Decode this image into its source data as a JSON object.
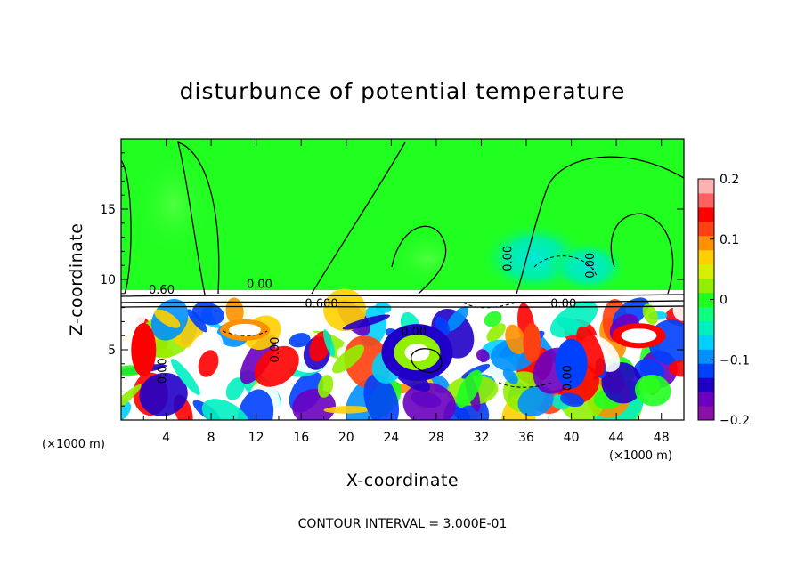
{
  "chart_data": {
    "type": "heatmap",
    "title": "disturbunce of potential temperature",
    "xlabel": "X-coordinate",
    "ylabel": "Z-coordinate",
    "x_unit": "(×1000 m)",
    "y_unit": "(×1000 m)",
    "xlim": [
      0,
      50
    ],
    "ylim": [
      0,
      20
    ],
    "x_ticks": [
      4,
      8,
      12,
      16,
      20,
      24,
      28,
      32,
      36,
      40,
      44,
      48
    ],
    "y_ticks": [
      5,
      10,
      15
    ],
    "colorbar": {
      "min": -0.2,
      "max": 0.2,
      "ticks": [
        0.2,
        0.1,
        0,
        -0.1,
        -0.2
      ],
      "tick_labels": [
        "0.2",
        "0.1",
        "0",
        "−0.1",
        "−0.2"
      ],
      "colors": [
        "#8c10a8",
        "#6a00c0",
        "#2000c8",
        "#0040ff",
        "#0090ff",
        "#00d0ff",
        "#00f0c0",
        "#10ff80",
        "#20ff20",
        "#90f000",
        "#d8f000",
        "#ffd000",
        "#ff9000",
        "#ff4010",
        "#ff0000",
        "#ff6060",
        "#ffb0b0"
      ]
    },
    "background_value": 0,
    "notes": "Upper layer (z > ~9 km) nearly zero disturbance with weak negative patches near x 38-44 km; lower layer (z < ~8 km) strongly turbulent eddies with values saturating beyond ±0.2 (shown white).",
    "contour_labels": [
      {
        "text": "0.60",
        "x": 3.6,
        "y": 9.0
      },
      {
        "text": "0.00",
        "x": 12.3,
        "y": 9.4
      },
      {
        "text": "0.600",
        "x": 17.8,
        "y": 8.0
      },
      {
        "text": "0.00",
        "x": 26.0,
        "y": 6.0
      },
      {
        "text": "0.00",
        "x": 34.7,
        "y": 11.5
      },
      {
        "text": "0.00",
        "x": 42.0,
        "y": 11.0
      },
      {
        "text": "0.00",
        "x": 39.3,
        "y": 8.0
      },
      {
        "text": "0.00",
        "x": 14.0,
        "y": 5.0
      },
      {
        "text": "0.00",
        "x": 4.0,
        "y": 3.5
      },
      {
        "text": "0.00",
        "x": 40.0,
        "y": 3.0
      }
    ],
    "contour_interval_text": "CONTOUR INTERVAL = 3.000E-01"
  },
  "axis_text": {
    "x_unit_left": "(×1000 m)",
    "x_unit_right": "(×1000 m)"
  }
}
